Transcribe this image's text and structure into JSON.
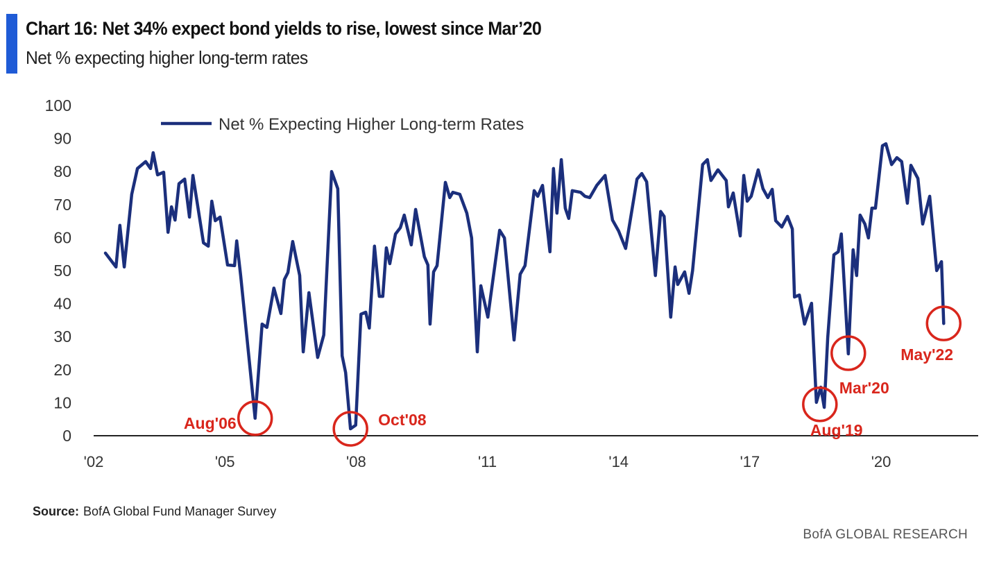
{
  "header": {
    "title": "Chart 16: Net 34% expect bond yields to rise, lowest since Mar’20",
    "subtitle": "Net % expecting higher long-term rates",
    "accent_color": "#1f5bd6"
  },
  "footer": {
    "source_label": "Source:",
    "source_text": "BofA Global Fund Manager Survey",
    "brand": "BofA GLOBAL RESEARCH"
  },
  "chart_data": {
    "type": "line",
    "title": "Chart 16: Net 34% expect bond yields to rise, lowest since Mar’20",
    "subtitle": "Net % expecting higher long-term rates",
    "xlabel": "",
    "ylabel": "",
    "ylim": [
      0,
      100
    ],
    "xlim": [
      2002,
      2021.6
    ],
    "yticks": [
      0,
      10,
      20,
      30,
      40,
      50,
      60,
      70,
      80,
      90,
      100
    ],
    "xticks": [
      {
        "value": 2002,
        "label": "'02"
      },
      {
        "value": 2005,
        "label": "'05"
      },
      {
        "value": 2008,
        "label": "'08"
      },
      {
        "value": 2011,
        "label": "'11"
      },
      {
        "value": 2014,
        "label": "'14"
      },
      {
        "value": 2017,
        "label": "'17"
      },
      {
        "value": 2020,
        "label": "'20"
      }
    ],
    "grid": false,
    "legend_position": "top-left",
    "series": [
      {
        "name": "Net % Expecting Higher Long-term Rates",
        "color": "#1b2f7c",
        "points": [
          [
            2002.27,
            55.3
          ],
          [
            2002.51,
            51.1
          ],
          [
            2002.6,
            63.7
          ],
          [
            2002.7,
            51.1
          ],
          [
            2002.87,
            73.1
          ],
          [
            2003.0,
            80.9
          ],
          [
            2003.19,
            83.0
          ],
          [
            2003.3,
            80.9
          ],
          [
            2003.36,
            85.7
          ],
          [
            2003.46,
            79.0
          ],
          [
            2003.6,
            79.8
          ],
          [
            2003.7,
            61.6
          ],
          [
            2003.78,
            69.3
          ],
          [
            2003.86,
            65.3
          ],
          [
            2003.95,
            76.3
          ],
          [
            2004.08,
            77.7
          ],
          [
            2004.19,
            66.2
          ],
          [
            2004.27,
            78.8
          ],
          [
            2004.51,
            58.4
          ],
          [
            2004.62,
            57.4
          ],
          [
            2004.7,
            71.0
          ],
          [
            2004.78,
            65.1
          ],
          [
            2004.89,
            66.2
          ],
          [
            2005.06,
            51.7
          ],
          [
            2005.22,
            51.5
          ],
          [
            2005.27,
            59.0
          ],
          [
            2005.36,
            48.5
          ],
          [
            2005.69,
            5.3
          ],
          [
            2005.85,
            33.8
          ],
          [
            2005.96,
            32.8
          ],
          [
            2006.12,
            44.7
          ],
          [
            2006.28,
            37.0
          ],
          [
            2006.36,
            47.3
          ],
          [
            2006.44,
            49.4
          ],
          [
            2006.55,
            58.8
          ],
          [
            2006.71,
            48.5
          ],
          [
            2006.79,
            25.4
          ],
          [
            2006.92,
            43.3
          ],
          [
            2007.12,
            23.7
          ],
          [
            2007.26,
            30.5
          ],
          [
            2007.44,
            80.0
          ],
          [
            2007.58,
            74.8
          ],
          [
            2007.68,
            24.2
          ],
          [
            2007.76,
            19.1
          ],
          [
            2007.87,
            2.1
          ],
          [
            2007.99,
            3.2
          ],
          [
            2008.11,
            36.8
          ],
          [
            2008.22,
            37.4
          ],
          [
            2008.3,
            32.6
          ],
          [
            2008.42,
            57.4
          ],
          [
            2008.53,
            42.2
          ],
          [
            2008.61,
            42.2
          ],
          [
            2008.69,
            56.9
          ],
          [
            2008.77,
            52.1
          ],
          [
            2008.9,
            61.1
          ],
          [
            2009.01,
            63.0
          ],
          [
            2009.1,
            66.8
          ],
          [
            2009.26,
            57.8
          ],
          [
            2009.36,
            68.5
          ],
          [
            2009.56,
            54.2
          ],
          [
            2009.64,
            51.7
          ],
          [
            2009.69,
            33.8
          ],
          [
            2009.77,
            49.6
          ],
          [
            2009.85,
            51.5
          ],
          [
            2010.04,
            76.7
          ],
          [
            2010.14,
            72.1
          ],
          [
            2010.21,
            73.7
          ],
          [
            2010.37,
            73.1
          ],
          [
            2010.53,
            67.4
          ],
          [
            2010.64,
            59.9
          ],
          [
            2010.77,
            25.4
          ],
          [
            2010.85,
            45.4
          ],
          [
            2011.01,
            35.9
          ],
          [
            2011.28,
            62.2
          ],
          [
            2011.39,
            59.9
          ],
          [
            2011.61,
            29.0
          ],
          [
            2011.75,
            48.9
          ],
          [
            2011.86,
            51.5
          ],
          [
            2012.07,
            74.2
          ],
          [
            2012.15,
            72.5
          ],
          [
            2012.26,
            75.8
          ],
          [
            2012.43,
            55.7
          ],
          [
            2012.51,
            80.9
          ],
          [
            2012.59,
            67.4
          ],
          [
            2012.69,
            83.6
          ],
          [
            2012.78,
            68.9
          ],
          [
            2012.86,
            65.8
          ],
          [
            2012.94,
            74.2
          ],
          [
            2013.13,
            73.7
          ],
          [
            2013.23,
            72.5
          ],
          [
            2013.34,
            72.1
          ],
          [
            2013.5,
            75.8
          ],
          [
            2013.69,
            78.8
          ],
          [
            2013.86,
            65.3
          ],
          [
            2014.0,
            62.0
          ],
          [
            2014.16,
            56.7
          ],
          [
            2014.42,
            77.7
          ],
          [
            2014.53,
            79.4
          ],
          [
            2014.64,
            76.9
          ],
          [
            2014.84,
            48.5
          ],
          [
            2014.96,
            67.9
          ],
          [
            2015.04,
            66.4
          ],
          [
            2015.19,
            35.9
          ],
          [
            2015.29,
            51.1
          ],
          [
            2015.35,
            45.8
          ],
          [
            2015.51,
            49.6
          ],
          [
            2015.61,
            43.1
          ],
          [
            2015.69,
            50.0
          ],
          [
            2015.92,
            82.1
          ],
          [
            2016.03,
            83.6
          ],
          [
            2016.11,
            77.3
          ],
          [
            2016.27,
            80.5
          ],
          [
            2016.46,
            77.3
          ],
          [
            2016.51,
            69.3
          ],
          [
            2016.62,
            73.5
          ],
          [
            2016.78,
            60.5
          ],
          [
            2016.86,
            78.8
          ],
          [
            2016.94,
            71.0
          ],
          [
            2017.03,
            72.5
          ],
          [
            2017.19,
            80.5
          ],
          [
            2017.3,
            74.8
          ],
          [
            2017.41,
            72.1
          ],
          [
            2017.51,
            74.6
          ],
          [
            2017.59,
            65.1
          ],
          [
            2017.73,
            63.2
          ],
          [
            2017.86,
            66.4
          ],
          [
            2017.97,
            62.6
          ],
          [
            2018.02,
            42.0
          ],
          [
            2018.13,
            42.6
          ],
          [
            2018.25,
            33.8
          ],
          [
            2018.41,
            40.1
          ],
          [
            2018.52,
            10.1
          ],
          [
            2018.62,
            14.7
          ],
          [
            2018.7,
            8.6
          ],
          [
            2018.78,
            29.6
          ],
          [
            2018.92,
            54.8
          ],
          [
            2019.02,
            55.7
          ],
          [
            2019.09,
            61.1
          ],
          [
            2019.25,
            24.8
          ],
          [
            2019.36,
            56.3
          ],
          [
            2019.44,
            48.5
          ],
          [
            2019.52,
            66.8
          ],
          [
            2019.63,
            64.1
          ],
          [
            2019.71,
            59.9
          ],
          [
            2019.79,
            68.9
          ],
          [
            2019.87,
            68.9
          ],
          [
            2020.03,
            87.8
          ],
          [
            2020.11,
            88.4
          ],
          [
            2020.24,
            82.1
          ],
          [
            2020.36,
            84.2
          ],
          [
            2020.47,
            83.0
          ],
          [
            2020.6,
            70.4
          ],
          [
            2020.68,
            81.9
          ],
          [
            2020.84,
            77.9
          ],
          [
            2020.95,
            64.1
          ],
          [
            2021.11,
            72.5
          ],
          [
            2021.27,
            50.0
          ],
          [
            2021.38,
            52.7
          ],
          [
            2021.43,
            34.0
          ]
        ]
      }
    ],
    "annotations": [
      {
        "label": "Aug'06",
        "x": 2005.69,
        "y": 5.3,
        "color": "#d9261c"
      },
      {
        "label": "Oct'08",
        "x": 2007.87,
        "y": 2.1,
        "color": "#d9261c"
      },
      {
        "label": "Aug'19",
        "x": 2018.6,
        "y": 9.5,
        "color": "#d9261c"
      },
      {
        "label": "Mar'20",
        "x": 2019.25,
        "y": 25.0,
        "color": "#d9261c"
      },
      {
        "label": "May'22",
        "x": 2021.43,
        "y": 34.0,
        "color": "#d9261c"
      }
    ]
  }
}
